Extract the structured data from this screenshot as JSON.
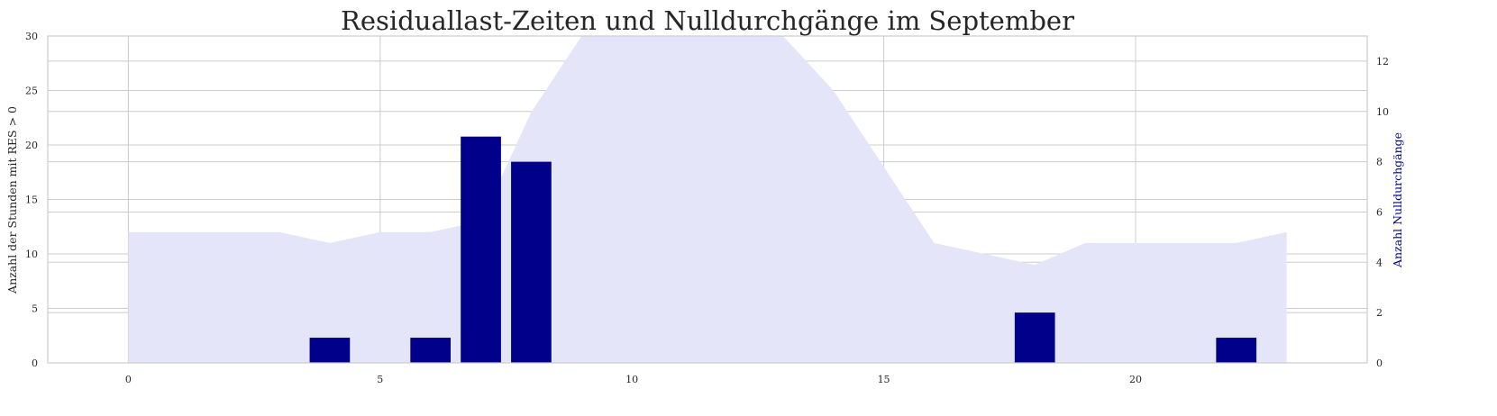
{
  "chart_data": {
    "type": "bar",
    "title": "Residuallast-Zeiten und Nulldurchgänge im September",
    "x": [
      0,
      1,
      2,
      3,
      4,
      5,
      6,
      7,
      8,
      9,
      10,
      11,
      12,
      13,
      14,
      15,
      16,
      17,
      18,
      19,
      20,
      21,
      22,
      23
    ],
    "xlim": [
      -1.6,
      24.6
    ],
    "xticks": [
      0,
      5,
      10,
      15,
      20
    ],
    "y_left": {
      "label": "Anzahl der Stunden mit RES > 0",
      "lim": [
        0,
        30
      ],
      "ticks": [
        0,
        5,
        10,
        15,
        20,
        25,
        30
      ]
    },
    "y_right": {
      "label": "Anzahl Nulldurchgänge",
      "lim": [
        0,
        13
      ],
      "ticks": [
        0,
        2,
        4,
        6,
        8,
        10,
        12
      ]
    },
    "series": [
      {
        "kind": "area",
        "axis": "left",
        "color": "#e4e5f8",
        "values": [
          12,
          12,
          12,
          12,
          11,
          12,
          12,
          13,
          23,
          30,
          30,
          30,
          30,
          30,
          25,
          18,
          11,
          10,
          9,
          11,
          11,
          11,
          11,
          12
        ]
      },
      {
        "kind": "bar",
        "axis": "right",
        "color": "#00008b",
        "values": [
          0,
          0,
          0,
          0,
          1,
          0,
          1,
          9,
          8,
          0,
          0,
          0,
          0,
          0,
          0,
          0,
          0,
          0,
          2,
          0,
          0,
          0,
          1,
          0
        ]
      }
    ],
    "grid": true,
    "legend": "none"
  }
}
